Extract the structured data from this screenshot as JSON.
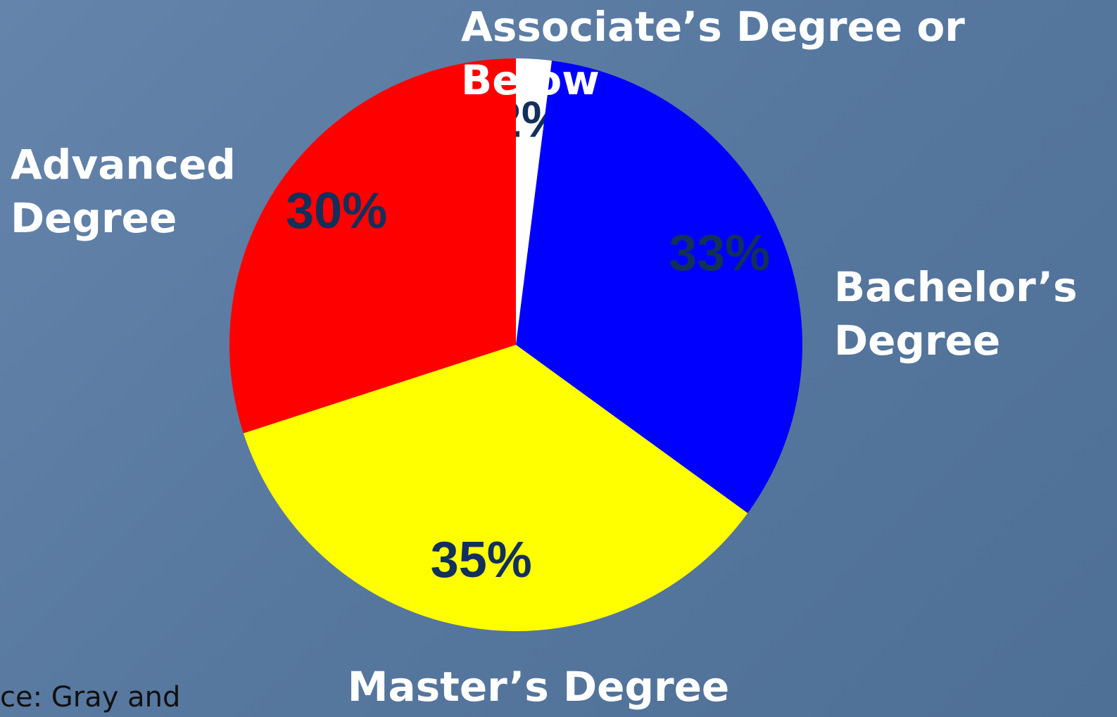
{
  "chart_data": {
    "type": "pie",
    "categories": [
      "Associate’s Degree or Below",
      "Bachelor’s Degree",
      "Master’s Degree",
      "Advanced Degree"
    ],
    "values": [
      2,
      33,
      35,
      30
    ],
    "value_labels": [
      "2%",
      "33%",
      "35%",
      "30%"
    ],
    "colors": [
      "#ffffff",
      "#0000ff",
      "#ffff00",
      "#ff0000"
    ],
    "source": "ce: Gray and"
  }
}
